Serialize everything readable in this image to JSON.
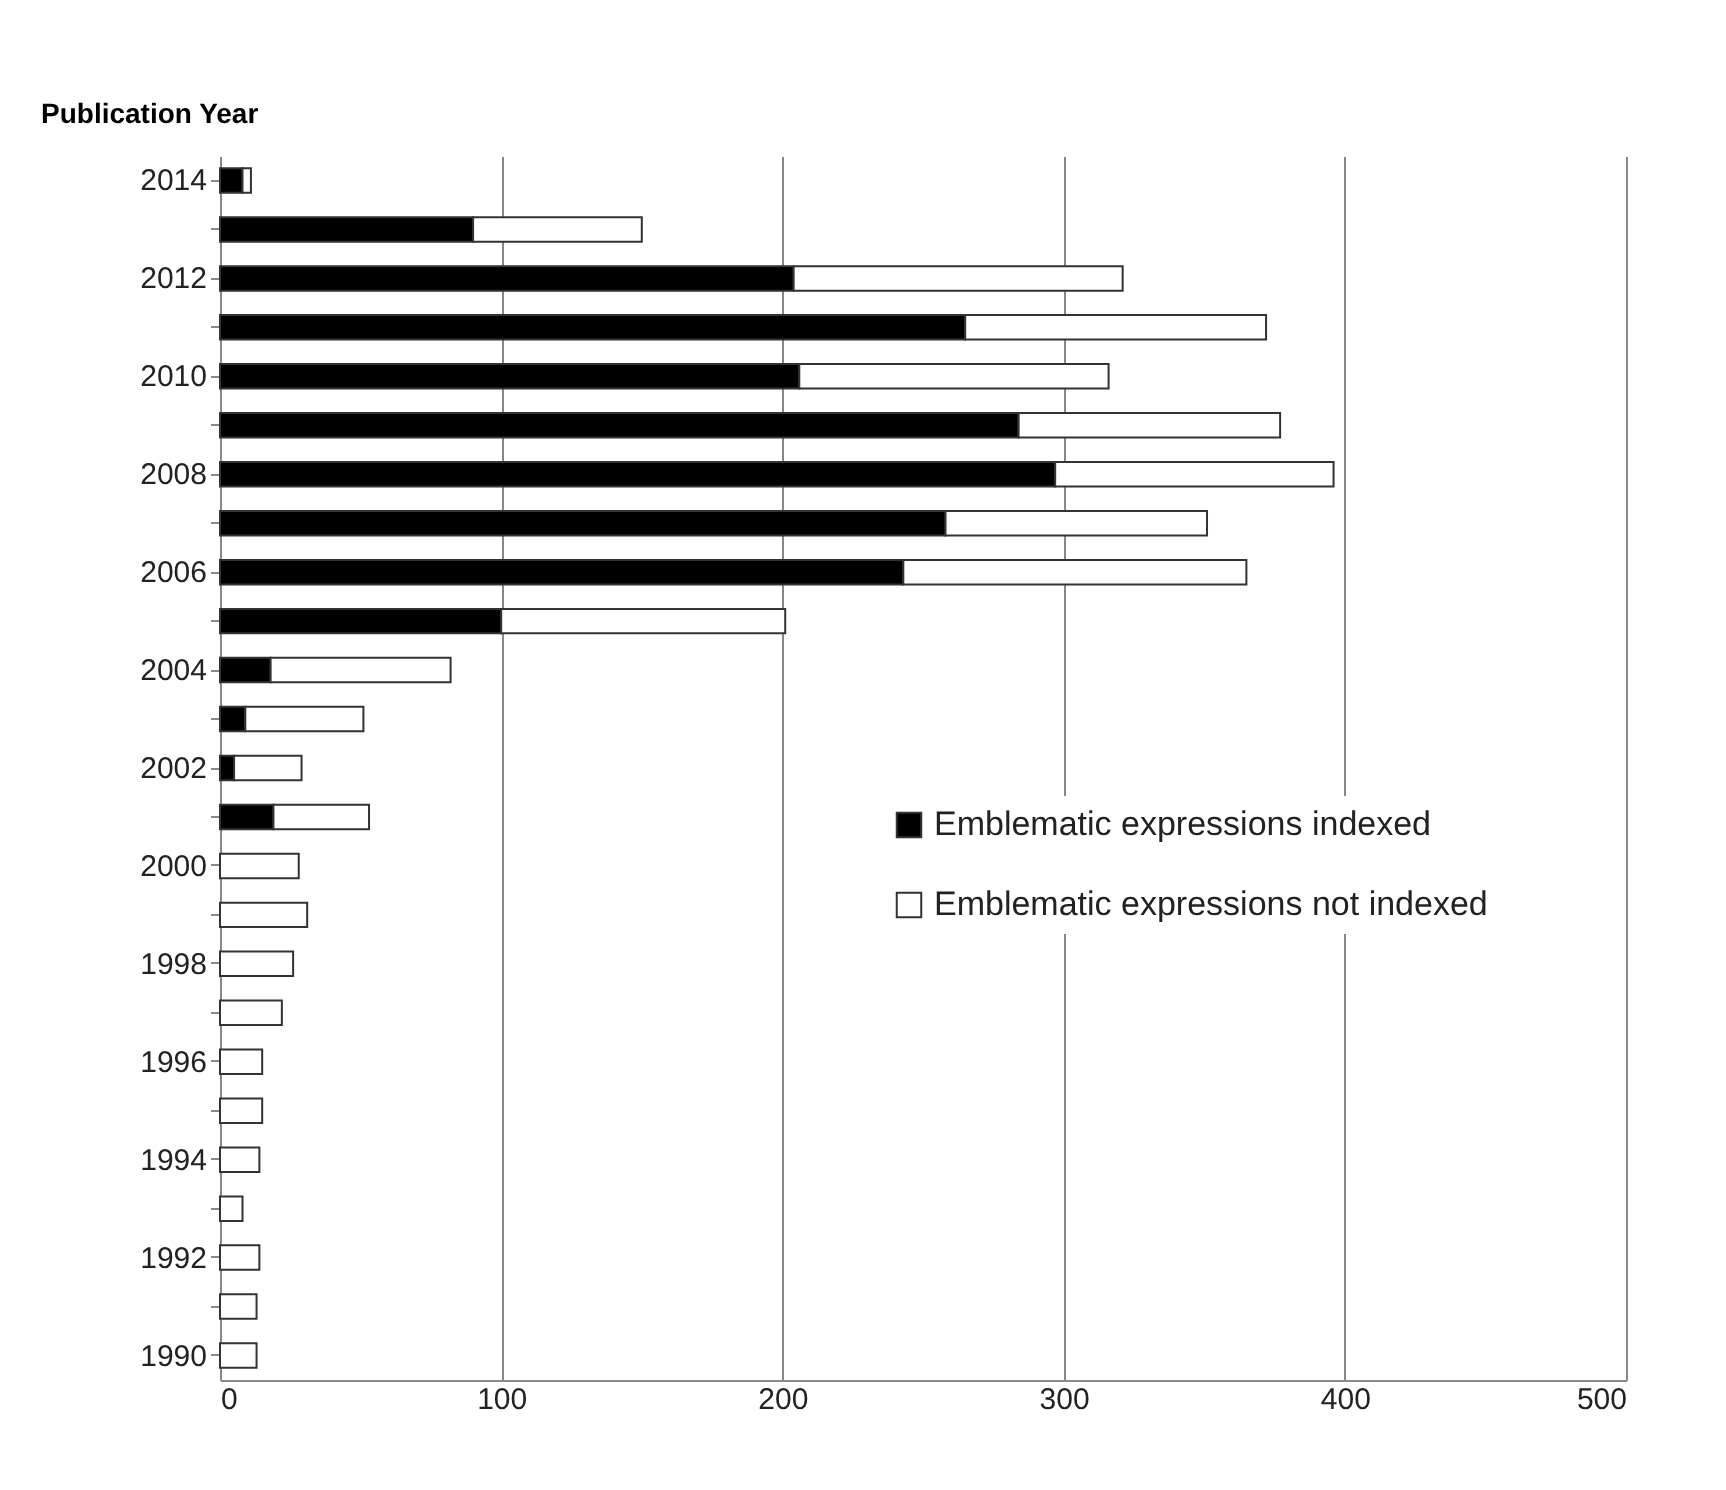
{
  "chart_data": {
    "type": "bar",
    "orientation": "horizontal",
    "stacked": true,
    "ylabel": "Publication Year",
    "categories": [
      "2014",
      null,
      "2012",
      null,
      "2010",
      null,
      "2008",
      null,
      "2006",
      null,
      "2004",
      null,
      "2002",
      null,
      "2000",
      null,
      "1998",
      null,
      "1996",
      null,
      "1994",
      null,
      "1992",
      null,
      "1990"
    ],
    "series": [
      {
        "name": "Emblematic expressions indexed",
        "color": "#000000",
        "values": [
          8,
          90,
          204,
          265,
          206,
          284,
          297,
          258,
          243,
          100,
          18,
          9,
          5,
          19,
          0,
          0,
          0,
          0,
          0,
          0,
          0,
          0,
          0,
          0,
          0
        ]
      },
      {
        "name": "Emblematic expressions not indexed",
        "color": "#ffffff",
        "values": [
          3,
          60,
          117,
          107,
          110,
          93,
          99,
          93,
          122,
          101,
          64,
          42,
          24,
          34,
          28,
          31,
          26,
          22,
          15,
          15,
          14,
          8,
          14,
          13,
          13
        ]
      }
    ],
    "xlim": [
      0,
      500
    ],
    "xticks": [
      0,
      100,
      200,
      300,
      400,
      500
    ],
    "grid": "x",
    "legend": "right"
  }
}
